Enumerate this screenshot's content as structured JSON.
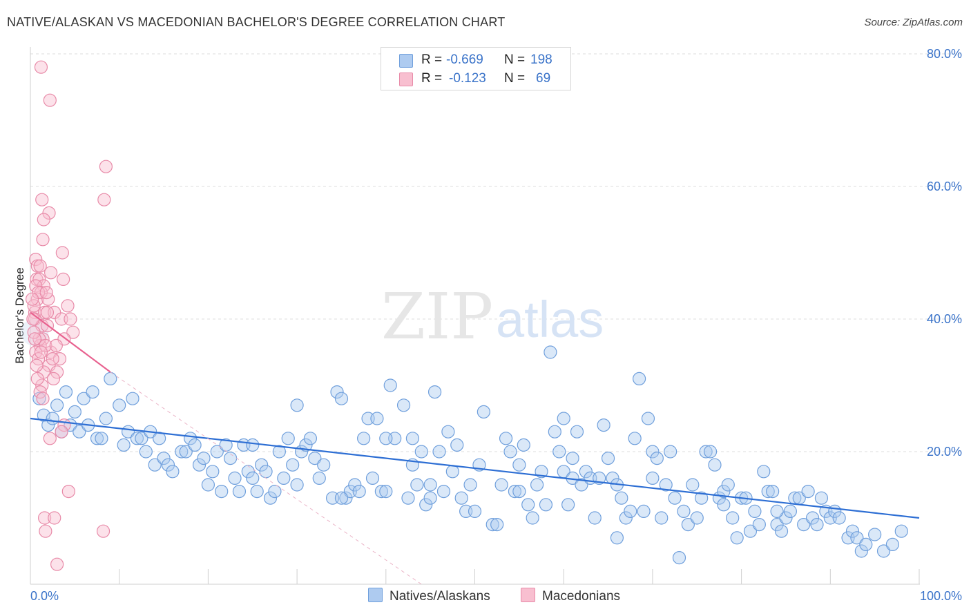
{
  "header": {
    "title": "NATIVE/ALASKAN VS MACEDONIAN BACHELOR'S DEGREE CORRELATION CHART",
    "source": "Source: ZipAtlas.com"
  },
  "watermark": {
    "zip": "ZIP",
    "atlas": "atlas"
  },
  "stats_legend": {
    "rows": [
      {
        "r_label": "R = ",
        "r_value": "-0.669",
        "n_label": "N = ",
        "n_value": "198",
        "color": "#aecbf0",
        "border": "#6f9fdc"
      },
      {
        "r_label": "R = ",
        "r_value": "-0.123",
        "n_label": "N = ",
        "n_value": "69",
        "color": "#f8bfd0",
        "border": "#e88aa8"
      }
    ]
  },
  "bottom_legend": [
    {
      "label": "Natives/Alaskans",
      "color": "#aecbf0",
      "border": "#6f9fdc"
    },
    {
      "label": "Macedonians",
      "color": "#f8bfd0",
      "border": "#e88aa8"
    }
  ],
  "chart_data": {
    "type": "scatter",
    "title": "NATIVE/ALASKAN VS MACEDONIAN BACHELOR'S DEGREE CORRELATION CHART",
    "xlabel": "",
    "ylabel": "Bachelor's Degree",
    "xlim": [
      0,
      100
    ],
    "ylim": [
      0,
      80
    ],
    "x_tick_labels": [
      "0.0%",
      "100.0%"
    ],
    "y_ticks": [
      20,
      40,
      60,
      80
    ],
    "y_tick_labels": [
      "20.0%",
      "40.0%",
      "60.0%",
      "80.0%"
    ],
    "grid": true,
    "legend_position": "bottom",
    "series": [
      {
        "name": "Natives/Alaskans",
        "color": "#aecbf0",
        "stroke": "#6f9fdc",
        "trend": {
          "x": [
            0,
            100
          ],
          "y": [
            25.0,
            10.0
          ],
          "color": "#2e6fd4"
        },
        "points": [
          [
            1,
            28
          ],
          [
            1.5,
            25.5
          ],
          [
            2,
            24
          ],
          [
            2.5,
            25
          ],
          [
            3,
            27
          ],
          [
            3.5,
            23
          ],
          [
            4,
            29
          ],
          [
            4.5,
            24
          ],
          [
            5,
            26
          ],
          [
            5.5,
            23
          ],
          [
            6,
            28
          ],
          [
            6.5,
            24
          ],
          [
            7,
            29
          ],
          [
            7.5,
            22
          ],
          [
            8,
            22
          ],
          [
            8.5,
            25
          ],
          [
            9,
            31
          ],
          [
            10,
            27
          ],
          [
            10.5,
            21
          ],
          [
            11,
            23
          ],
          [
            11.5,
            28
          ],
          [
            12,
            22
          ],
          [
            12.5,
            22
          ],
          [
            13,
            20
          ],
          [
            13.5,
            23
          ],
          [
            14,
            18
          ],
          [
            14.5,
            22
          ],
          [
            15,
            19
          ],
          [
            15.5,
            18
          ],
          [
            16,
            17
          ],
          [
            17,
            20
          ],
          [
            17.5,
            20
          ],
          [
            18,
            22
          ],
          [
            18.5,
            21
          ],
          [
            19,
            18
          ],
          [
            19.5,
            19
          ],
          [
            20,
            15
          ],
          [
            20.5,
            17
          ],
          [
            21,
            20
          ],
          [
            21.5,
            14
          ],
          [
            22,
            21
          ],
          [
            22.5,
            19
          ],
          [
            23,
            16
          ],
          [
            23.5,
            14
          ],
          [
            24,
            21
          ],
          [
            24.5,
            17
          ],
          [
            25,
            16
          ],
          [
            25.5,
            14
          ],
          [
            26,
            18
          ],
          [
            26.5,
            17
          ],
          [
            27,
            13
          ],
          [
            27.5,
            14
          ],
          [
            28,
            20
          ],
          [
            28.5,
            16
          ],
          [
            29,
            22
          ],
          [
            29.5,
            18
          ],
          [
            30,
            27
          ],
          [
            30.5,
            20
          ],
          [
            31,
            21
          ],
          [
            31.5,
            22
          ],
          [
            32,
            19
          ],
          [
            32.5,
            16
          ],
          [
            33,
            18
          ],
          [
            34,
            13
          ],
          [
            34.5,
            29
          ],
          [
            35,
            28
          ],
          [
            35.5,
            13
          ],
          [
            36,
            14
          ],
          [
            36.5,
            15
          ],
          [
            37,
            14
          ],
          [
            37.5,
            22
          ],
          [
            38,
            25
          ],
          [
            38.5,
            16
          ],
          [
            39,
            25
          ],
          [
            39.5,
            14
          ],
          [
            40,
            14
          ],
          [
            40.5,
            30
          ],
          [
            41,
            22
          ],
          [
            42,
            27
          ],
          [
            42.5,
            13
          ],
          [
            43,
            22
          ],
          [
            43.5,
            15
          ],
          [
            44,
            20
          ],
          [
            44.5,
            12
          ],
          [
            45,
            13
          ],
          [
            45.5,
            29
          ],
          [
            46,
            20
          ],
          [
            46.5,
            14
          ],
          [
            47,
            23
          ],
          [
            47.5,
            17
          ],
          [
            48,
            21
          ],
          [
            48.5,
            13
          ],
          [
            49,
            11
          ],
          [
            49.5,
            15
          ],
          [
            50,
            11
          ],
          [
            50.5,
            18
          ],
          [
            51,
            26
          ],
          [
            52,
            9
          ],
          [
            52.5,
            9
          ],
          [
            53,
            15
          ],
          [
            53.5,
            22
          ],
          [
            54,
            20
          ],
          [
            54.5,
            14
          ],
          [
            55,
            18
          ],
          [
            55.5,
            21
          ],
          [
            56,
            12
          ],
          [
            56.5,
            10
          ],
          [
            57,
            15
          ],
          [
            57.5,
            17
          ],
          [
            58,
            12
          ],
          [
            58.5,
            35
          ],
          [
            59,
            23
          ],
          [
            59.5,
            20
          ],
          [
            60,
            17
          ],
          [
            60.5,
            12
          ],
          [
            61,
            16
          ],
          [
            61.5,
            23
          ],
          [
            62,
            15
          ],
          [
            62.5,
            17
          ],
          [
            63,
            16
          ],
          [
            63.5,
            10
          ],
          [
            64,
            16
          ],
          [
            64.5,
            24
          ],
          [
            65,
            19
          ],
          [
            65.5,
            16
          ],
          [
            66,
            7
          ],
          [
            66.5,
            13
          ],
          [
            67,
            10
          ],
          [
            67.5,
            11
          ],
          [
            68,
            22
          ],
          [
            68.5,
            31
          ],
          [
            69,
            11
          ],
          [
            69.5,
            25
          ],
          [
            70,
            20
          ],
          [
            70.5,
            19
          ],
          [
            71,
            10
          ],
          [
            71.5,
            15
          ],
          [
            72,
            20
          ],
          [
            72.5,
            13
          ],
          [
            73,
            4
          ],
          [
            73.5,
            11
          ],
          [
            74,
            9
          ],
          [
            74.5,
            15
          ],
          [
            75,
            10
          ],
          [
            75.5,
            13
          ],
          [
            76,
            20
          ],
          [
            76.5,
            20
          ],
          [
            77,
            18
          ],
          [
            77.5,
            13
          ],
          [
            78,
            14
          ],
          [
            78.5,
            15
          ],
          [
            79,
            10
          ],
          [
            79.5,
            7
          ],
          [
            80,
            13
          ],
          [
            80.5,
            13
          ],
          [
            81,
            8
          ],
          [
            81.5,
            11
          ],
          [
            82,
            9
          ],
          [
            82.5,
            17
          ],
          [
            83,
            14
          ],
          [
            83.5,
            14
          ],
          [
            84,
            9
          ],
          [
            84.5,
            8
          ],
          [
            85,
            10
          ],
          [
            85.5,
            11
          ],
          [
            86,
            13
          ],
          [
            86.5,
            13
          ],
          [
            87,
            9
          ],
          [
            87.5,
            14
          ],
          [
            88,
            10
          ],
          [
            88.5,
            9
          ],
          [
            89,
            13
          ],
          [
            89.5,
            11
          ],
          [
            90,
            10
          ],
          [
            90.5,
            11
          ],
          [
            91,
            10
          ],
          [
            92,
            7
          ],
          [
            92.5,
            8
          ],
          [
            93,
            7
          ],
          [
            93.5,
            5
          ],
          [
            94,
            6
          ],
          [
            95,
            7.5
          ],
          [
            96,
            5
          ],
          [
            97,
            6
          ],
          [
            98,
            8
          ],
          [
            25,
            21
          ],
          [
            40,
            22
          ],
          [
            60,
            25
          ],
          [
            70,
            16
          ],
          [
            45,
            15
          ],
          [
            55,
            14
          ],
          [
            35,
            13
          ],
          [
            84,
            11
          ],
          [
            66,
            15
          ],
          [
            78,
            12
          ],
          [
            61,
            19
          ],
          [
            43,
            18
          ],
          [
            30,
            15
          ]
        ]
      },
      {
        "name": "Macedonians",
        "color": "#f8bfd0",
        "stroke": "#e88aa8",
        "trend": {
          "x": [
            0,
            9
          ],
          "y": [
            41.0,
            32.0
          ],
          "color": "#e8618f",
          "dashed_extension": {
            "x": [
              9,
              44
            ],
            "y": [
              32.0,
              0
            ]
          }
        },
        "points": [
          [
            1.2,
            78
          ],
          [
            2.2,
            73
          ],
          [
            8.5,
            63
          ],
          [
            8.3,
            58
          ],
          [
            1.3,
            58
          ],
          [
            2.1,
            56
          ],
          [
            1.5,
            55
          ],
          [
            1.4,
            52
          ],
          [
            3.6,
            50
          ],
          [
            0.6,
            49
          ],
          [
            0.8,
            48
          ],
          [
            1.1,
            48
          ],
          [
            2.3,
            47
          ],
          [
            0.7,
            46
          ],
          [
            1.0,
            46
          ],
          [
            3.7,
            46
          ],
          [
            1.5,
            45
          ],
          [
            0.6,
            45
          ],
          [
            1.2,
            44
          ],
          [
            0.8,
            43
          ],
          [
            2.0,
            43
          ],
          [
            4.2,
            42
          ],
          [
            0.5,
            41
          ],
          [
            1.6,
            41
          ],
          [
            2.7,
            41
          ],
          [
            3.5,
            40
          ],
          [
            4.5,
            40
          ],
          [
            0.5,
            40
          ],
          [
            1.3,
            39
          ],
          [
            1.9,
            39
          ],
          [
            4.8,
            38
          ],
          [
            1.4,
            37
          ],
          [
            3.8,
            37
          ],
          [
            1.1,
            36
          ],
          [
            0.6,
            35
          ],
          [
            2.3,
            35
          ],
          [
            0.9,
            34
          ],
          [
            3.3,
            34
          ],
          [
            2.1,
            33
          ],
          [
            1.5,
            32
          ],
          [
            3.0,
            32
          ],
          [
            2.6,
            31
          ],
          [
            0.4,
            42
          ],
          [
            0.9,
            44
          ],
          [
            1.8,
            44
          ],
          [
            0.3,
            40
          ],
          [
            1.0,
            37
          ],
          [
            1.7,
            36
          ],
          [
            2.5,
            34
          ],
          [
            0.7,
            33
          ],
          [
            1.3,
            30
          ],
          [
            1.1,
            29
          ],
          [
            1.4,
            28
          ],
          [
            3.8,
            24
          ],
          [
            3.5,
            23
          ],
          [
            2.2,
            22
          ],
          [
            4.3,
            14
          ],
          [
            1.6,
            10
          ],
          [
            2.7,
            10
          ],
          [
            1.7,
            8
          ],
          [
            8.2,
            8
          ],
          [
            3.0,
            3
          ],
          [
            0.4,
            38
          ],
          [
            0.2,
            43
          ],
          [
            1.2,
            35
          ],
          [
            2.9,
            36
          ],
          [
            0.8,
            31
          ],
          [
            0.5,
            37
          ],
          [
            1.9,
            41
          ]
        ]
      }
    ]
  }
}
